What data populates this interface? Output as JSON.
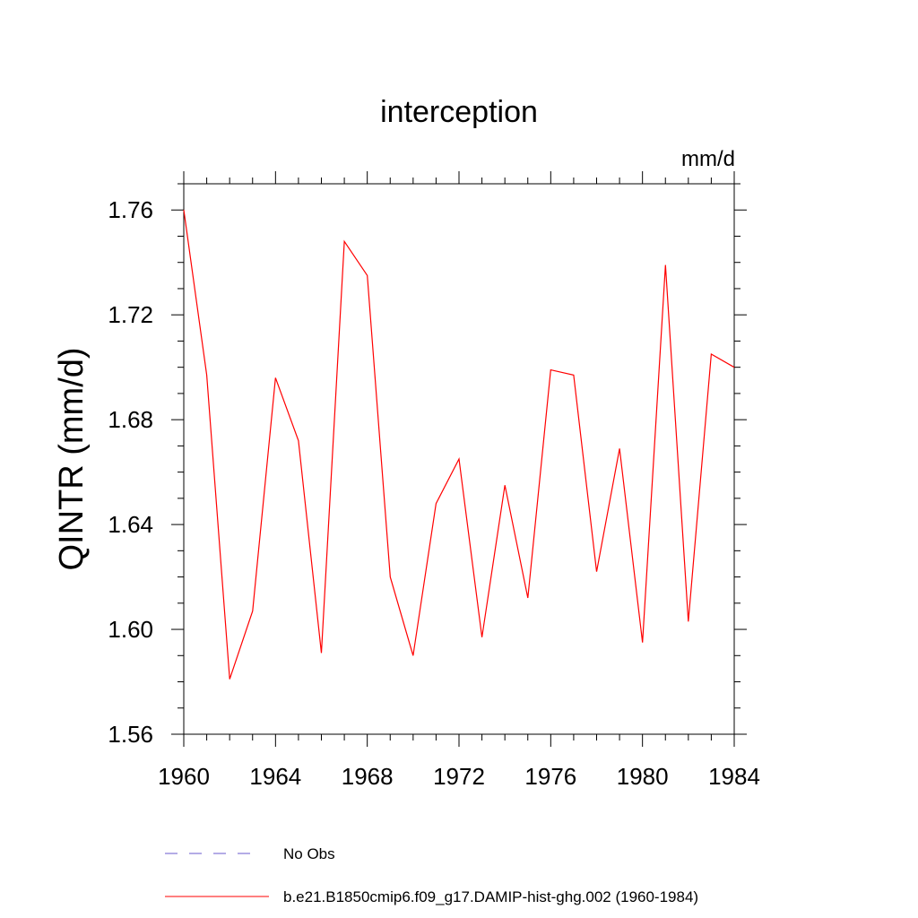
{
  "chart_data": {
    "type": "line",
    "title": "interception",
    "units_label": "mm/d",
    "ylabel": "QINTR  (mm/d)",
    "xlabel": "",
    "xlim": [
      1960,
      1984
    ],
    "ylim": [
      1.56,
      1.77
    ],
    "xticks": [
      1960,
      1964,
      1968,
      1972,
      1976,
      1980,
      1984
    ],
    "yticks": [
      "1.56",
      "1.60",
      "1.64",
      "1.68",
      "1.72",
      "1.76"
    ],
    "series": [
      {
        "name": "b.e21.B1850cmip6.f09_g17.DAMIP-hist-ghg.002 (1960-1984)",
        "color": "#ff0000",
        "x": [
          1960,
          1961,
          1962,
          1963,
          1964,
          1965,
          1966,
          1967,
          1968,
          1969,
          1970,
          1971,
          1972,
          1973,
          1974,
          1975,
          1976,
          1977,
          1978,
          1979,
          1980,
          1981,
          1982,
          1983,
          1984
        ],
        "values": [
          1.76,
          1.697,
          1.581,
          1.607,
          1.696,
          1.672,
          1.591,
          1.748,
          1.735,
          1.62,
          1.59,
          1.648,
          1.665,
          1.597,
          1.655,
          1.612,
          1.699,
          1.697,
          1.622,
          1.669,
          1.595,
          1.739,
          1.603,
          1.705,
          1.7
        ]
      }
    ],
    "legend": [
      {
        "label": "No Obs",
        "style": "dashed",
        "color": "#6a5acd"
      },
      {
        "label": "b.e21.B1850cmip6.f09_g17.DAMIP-hist-ghg.002 (1960-1984)",
        "style": "solid",
        "color": "#ff0000"
      }
    ],
    "legend_position": "bottom"
  }
}
